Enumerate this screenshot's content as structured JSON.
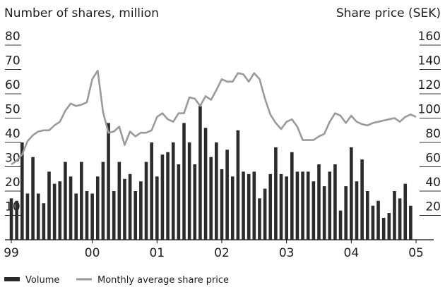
{
  "chart_data": {
    "type": "bar",
    "y_label": "Number of shares, million",
    "y2_label": "Share price (SEK)",
    "categories": [
      "99",
      null,
      null,
      null,
      null,
      null,
      null,
      null,
      null,
      null,
      null,
      null,
      null,
      null,
      null,
      "00",
      null,
      null,
      null,
      null,
      null,
      null,
      null,
      null,
      null,
      null,
      null,
      "01",
      null,
      null,
      null,
      null,
      null,
      null,
      null,
      null,
      null,
      null,
      null,
      "02",
      null,
      null,
      null,
      null,
      null,
      null,
      null,
      null,
      null,
      null,
      null,
      "03",
      null,
      null,
      null,
      null,
      null,
      null,
      null,
      null,
      null,
      null,
      null,
      "04",
      null,
      null,
      null,
      null,
      null,
      null,
      null,
      null,
      null,
      null,
      null,
      "05"
    ],
    "series": [
      {
        "name": "Volume",
        "type": "bar",
        "color": "#2b2b2b",
        "values": [
          17,
          16,
          40,
          19,
          34,
          19,
          15,
          28,
          23,
          24,
          32,
          26,
          19,
          32,
          20,
          19,
          26,
          32,
          48,
          20,
          32,
          25,
          27,
          20,
          24,
          32,
          40,
          26,
          35,
          36,
          40,
          31,
          48,
          40,
          31,
          55,
          46,
          34,
          40,
          29,
          37,
          26,
          45,
          28,
          27,
          28,
          17,
          21,
          27,
          38,
          27,
          26,
          36,
          28,
          28,
          28,
          24,
          31,
          22,
          28,
          31,
          12,
          22,
          38,
          24,
          33,
          20,
          14,
          16,
          9,
          11,
          20,
          17,
          23,
          14,
          null
        ]
      },
      {
        "name": "Monthly average share price",
        "type": "line",
        "axis": "y2",
        "color": "#9a9a9a",
        "values": [
          62,
          65,
          70,
          81,
          86,
          89,
          90,
          90,
          94,
          97,
          106,
          112,
          110,
          111,
          113,
          132,
          139,
          105,
          88,
          89,
          93,
          78,
          89,
          85,
          88,
          88,
          90,
          101,
          104,
          99,
          97,
          104,
          104,
          117,
          116,
          110,
          118,
          115,
          123,
          132,
          130,
          130,
          137,
          136,
          130,
          137,
          132,
          116,
          103,
          96,
          91,
          97,
          99,
          93,
          82,
          82,
          82,
          85,
          87,
          97,
          104,
          102,
          96,
          102,
          97,
          95,
          94,
          96,
          97,
          98,
          99,
          100,
          97,
          101,
          103,
          101
        ]
      }
    ],
    "ylim": [
      0,
      80
    ],
    "yticks": [
      10,
      20,
      30,
      40,
      50,
      60,
      70,
      80
    ],
    "y2lim": [
      0,
      160
    ],
    "y2ticks": [
      20,
      40,
      60,
      80,
      100,
      120,
      140,
      160
    ],
    "legend": "bottom"
  }
}
